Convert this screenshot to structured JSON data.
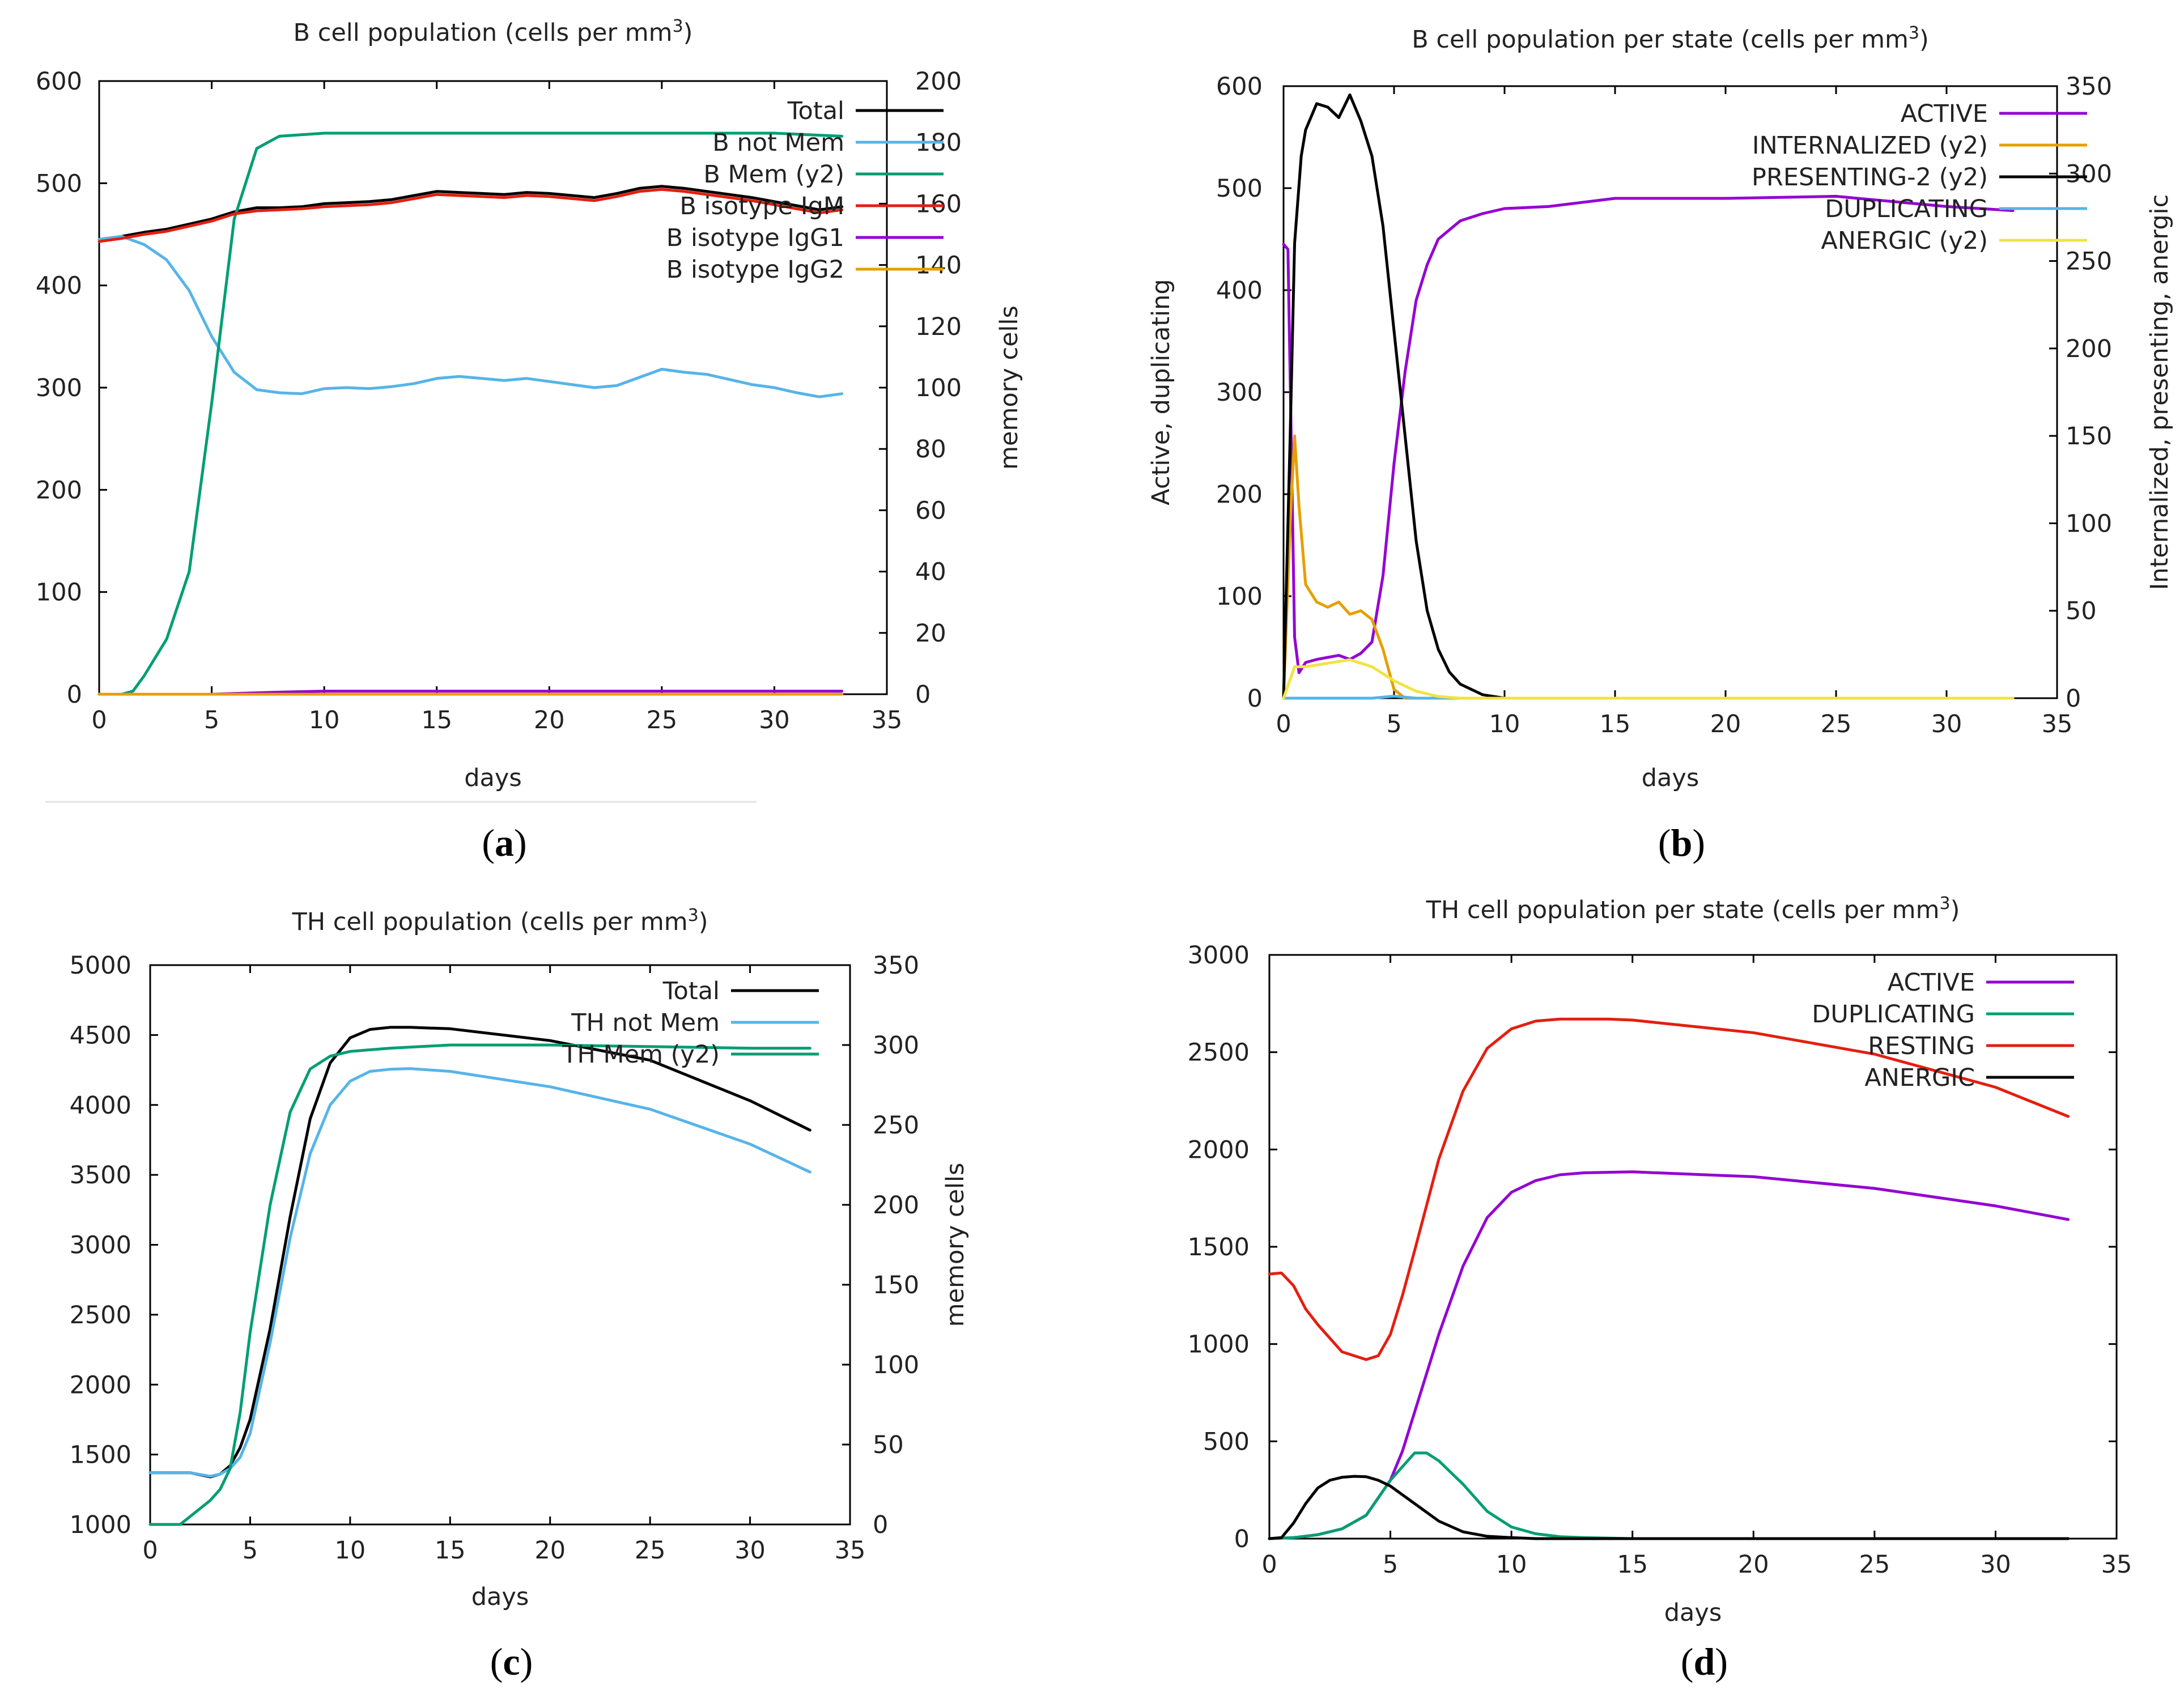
{
  "colors": {
    "black": "#000000",
    "sky": "#56b4e9",
    "green": "#009e73",
    "purple": "#9400d3",
    "orange": "#e69f00",
    "yellow": "#f0e442",
    "red": "#e51e10"
  },
  "chart_data": [
    {
      "id": "a",
      "panel_label": "a",
      "type": "line",
      "title": "B cell population (cells per mm",
      "title_sup": "3",
      "title_end": ")",
      "xlabel": "days",
      "ylabel": "",
      "y2label": "memory cells",
      "xlim": [
        0,
        35
      ],
      "ylim": [
        0,
        600
      ],
      "y2lim": [
        0,
        200
      ],
      "xticks": [
        0,
        5,
        10,
        15,
        20,
        25,
        30,
        35
      ],
      "yticks": [
        0,
        100,
        200,
        300,
        400,
        500,
        600
      ],
      "y2ticks": [
        0,
        20,
        40,
        60,
        80,
        100,
        120,
        140,
        160,
        180,
        200
      ],
      "series": [
        {
          "name": "Total",
          "color": "#000000",
          "axis": "y",
          "x": [
            0,
            1,
            2,
            3,
            4,
            5,
            6,
            7,
            8,
            9,
            10,
            11,
            12,
            13,
            14,
            15,
            16,
            17,
            18,
            19,
            20,
            21,
            22,
            23,
            24,
            25,
            26,
            27,
            28,
            29,
            30,
            31,
            32,
            33
          ],
          "y": [
            445,
            448,
            452,
            455,
            460,
            465,
            472,
            476,
            476,
            477,
            480,
            481,
            482,
            484,
            488,
            492,
            491,
            490,
            489,
            491,
            490,
            488,
            486,
            490,
            495,
            497,
            495,
            492,
            489,
            486,
            482,
            478,
            474,
            477
          ]
        },
        {
          "name": "B not Mem",
          "color": "#56b4e9",
          "axis": "y",
          "x": [
            0,
            1,
            2,
            3,
            4,
            5,
            6,
            7,
            8,
            9,
            10,
            11,
            12,
            13,
            14,
            15,
            16,
            17,
            18,
            19,
            20,
            21,
            22,
            23,
            24,
            25,
            26,
            27,
            28,
            29,
            30,
            31,
            32,
            33
          ],
          "y": [
            445,
            448,
            440,
            425,
            395,
            350,
            315,
            298,
            295,
            294,
            299,
            300,
            299,
            301,
            304,
            309,
            311,
            309,
            307,
            309,
            306,
            303,
            300,
            302,
            310,
            318,
            315,
            313,
            308,
            303,
            300,
            295,
            291,
            294
          ]
        },
        {
          "name": "B Mem (y2)",
          "color": "#009e73",
          "axis": "y2",
          "x": [
            0,
            1,
            1.5,
            2,
            3,
            4,
            5,
            6,
            7,
            8,
            10,
            15,
            20,
            25,
            30,
            33
          ],
          "y": [
            0,
            0,
            1,
            6,
            18,
            40,
            95,
            155,
            178,
            182,
            183,
            183,
            183,
            183,
            183,
            182
          ]
        },
        {
          "name": "B isotype IgM",
          "color": "#e51e10",
          "axis": "y",
          "x": [
            0,
            1,
            2,
            3,
            4,
            5,
            6,
            7,
            8,
            9,
            10,
            11,
            12,
            13,
            14,
            15,
            16,
            17,
            18,
            19,
            20,
            21,
            22,
            23,
            24,
            25,
            26,
            27,
            28,
            29,
            30,
            31,
            32,
            33
          ],
          "y": [
            443,
            446,
            450,
            453,
            458,
            463,
            470,
            473,
            474,
            475,
            477,
            478,
            479,
            481,
            485,
            489,
            488,
            487,
            486,
            488,
            487,
            485,
            483,
            487,
            492,
            494,
            492,
            489,
            486,
            483,
            479,
            475,
            471,
            474
          ]
        },
        {
          "name": "B isotype IgG1",
          "color": "#9400d3",
          "axis": "y",
          "x": [
            0,
            5,
            8,
            10,
            15,
            20,
            25,
            30,
            33
          ],
          "y": [
            0,
            0,
            2,
            3,
            3,
            3,
            3,
            3,
            3
          ]
        },
        {
          "name": "B isotype IgG2",
          "color": "#e69f00",
          "axis": "y",
          "x": [
            0,
            5,
            10,
            15,
            20,
            25,
            30,
            33
          ],
          "y": [
            0,
            0,
            0,
            0,
            0,
            0,
            0,
            0
          ]
        }
      ]
    },
    {
      "id": "b",
      "panel_label": "b",
      "type": "line",
      "title": "B cell population  per state (cells per mm",
      "title_sup": "3",
      "title_end": ")",
      "xlabel": "days",
      "ylabel": "Active, duplicating",
      "y2label": "Internalized, presenting, anergic",
      "xlim": [
        0,
        35
      ],
      "ylim": [
        0,
        600
      ],
      "y2lim": [
        0,
        350
      ],
      "xticks": [
        0,
        5,
        10,
        15,
        20,
        25,
        30,
        35
      ],
      "yticks": [
        0,
        100,
        200,
        300,
        400,
        500,
        600
      ],
      "y2ticks": [
        0,
        50,
        100,
        150,
        200,
        250,
        300,
        350
      ],
      "series": [
        {
          "name": "ACTIVE",
          "color": "#9400d3",
          "axis": "y",
          "x": [
            0,
            0.2,
            0.5,
            0.7,
            1,
            1.5,
            2,
            2.5,
            3,
            3.5,
            4,
            4.5,
            5,
            5.5,
            6,
            6.5,
            7,
            8,
            9,
            10,
            12,
            15,
            20,
            25,
            30,
            33
          ],
          "y": [
            445,
            440,
            60,
            25,
            35,
            38,
            40,
            42,
            38,
            44,
            55,
            120,
            230,
            320,
            390,
            425,
            450,
            468,
            475,
            480,
            482,
            490,
            490,
            492,
            482,
            478
          ]
        },
        {
          "name": "INTERNALIZED (y2)",
          "color": "#e69f00",
          "axis": "y2",
          "x": [
            0,
            0.3,
            0.5,
            0.7,
            1,
            1.5,
            2,
            2.5,
            3,
            3.5,
            4,
            4.5,
            5,
            5.5,
            6,
            8,
            10,
            20,
            33
          ],
          "y": [
            0,
            100,
            150,
            110,
            65,
            55,
            52,
            55,
            48,
            50,
            45,
            28,
            5,
            0,
            0,
            0,
            0,
            0,
            0
          ]
        },
        {
          "name": "PRESENTING-2 (y2)",
          "color": "#000000",
          "axis": "y2",
          "x": [
            0,
            0.3,
            0.5,
            0.8,
            1,
            1.5,
            2,
            2.5,
            3,
            3.5,
            4,
            4.5,
            5,
            5.5,
            6,
            6.5,
            7,
            7.5,
            8,
            9,
            10,
            12,
            20,
            33
          ],
          "y": [
            0,
            150,
            260,
            310,
            325,
            340,
            338,
            332,
            345,
            330,
            310,
            270,
            210,
            150,
            90,
            50,
            28,
            15,
            8,
            2,
            0,
            0,
            0,
            0
          ]
        },
        {
          "name": "DUPLICATING",
          "color": "#56b4e9",
          "axis": "y",
          "x": [
            0,
            2,
            4,
            5,
            6,
            10,
            20,
            33
          ],
          "y": [
            0,
            0,
            0,
            2,
            0,
            0,
            0,
            0
          ]
        },
        {
          "name": "ANERGIC (y2)",
          "color": "#f0e442",
          "axis": "y2",
          "x": [
            0,
            0.5,
            1,
            2,
            3,
            4,
            5,
            6,
            7,
            8,
            10,
            20,
            33
          ],
          "y": [
            0,
            18,
            18,
            20,
            22,
            18,
            10,
            4,
            1,
            0,
            0,
            0,
            0
          ]
        }
      ]
    },
    {
      "id": "c",
      "panel_label": "c",
      "type": "line",
      "title": "TH cell population (cells per mm",
      "title_sup": "3",
      "title_end": ")",
      "xlabel": "days",
      "ylabel": "",
      "y2label": "memory cells",
      "xlim": [
        0,
        35
      ],
      "ylim": [
        1000,
        5000
      ],
      "y2lim": [
        0,
        350
      ],
      "xticks": [
        0,
        5,
        10,
        15,
        20,
        25,
        30,
        35
      ],
      "yticks": [
        1000,
        1500,
        2000,
        2500,
        3000,
        3500,
        4000,
        4500,
        5000
      ],
      "y2ticks": [
        0,
        50,
        100,
        150,
        200,
        250,
        300,
        350
      ],
      "series": [
        {
          "name": "Total",
          "color": "#000000",
          "axis": "y",
          "x": [
            0,
            1,
            2,
            3,
            3.5,
            4,
            4.5,
            5,
            6,
            7,
            8,
            9,
            10,
            11,
            12,
            13,
            15,
            20,
            25,
            30,
            33
          ],
          "y": [
            1370,
            1370,
            1370,
            1340,
            1360,
            1420,
            1550,
            1750,
            2400,
            3200,
            3900,
            4300,
            4480,
            4540,
            4555,
            4555,
            4545,
            4460,
            4320,
            4030,
            3820
          ]
        },
        {
          "name": "TH not Mem",
          "color": "#56b4e9",
          "axis": "y",
          "x": [
            0,
            1,
            2,
            3,
            3.5,
            4,
            4.5,
            5,
            6,
            7,
            8,
            9,
            10,
            11,
            12,
            13,
            15,
            20,
            25,
            30,
            33
          ],
          "y": [
            1370,
            1370,
            1370,
            1345,
            1360,
            1400,
            1480,
            1650,
            2300,
            3050,
            3650,
            4000,
            4170,
            4240,
            4255,
            4260,
            4240,
            4130,
            3970,
            3720,
            3520
          ]
        },
        {
          "name": "TH Mem (y2)",
          "color": "#009e73",
          "axis": "y2",
          "x": [
            0,
            1,
            1.5,
            2,
            3,
            3.5,
            4,
            4.5,
            5,
            6,
            7,
            8,
            9,
            10,
            12,
            15,
            20,
            25,
            30,
            33
          ],
          "y": [
            0,
            0,
            0,
            5,
            15,
            22,
            35,
            70,
            120,
            200,
            258,
            285,
            293,
            296,
            298,
            300,
            300,
            299,
            298,
            298
          ]
        }
      ]
    },
    {
      "id": "d",
      "panel_label": "d",
      "type": "line",
      "title": "TH cell population per state (cells per mm",
      "title_sup": "3",
      "title_end": ")",
      "xlabel": "days",
      "ylabel": "",
      "y2label": "",
      "xlim": [
        0,
        35
      ],
      "ylim": [
        0,
        3000
      ],
      "xticks": [
        0,
        5,
        10,
        15,
        20,
        25,
        30,
        35
      ],
      "yticks": [
        0,
        500,
        1000,
        1500,
        2000,
        2500,
        3000
      ],
      "series": [
        {
          "name": "ACTIVE",
          "color": "#9400d3",
          "axis": "y",
          "x": [
            0,
            1,
            2,
            3,
            4,
            5,
            5.5,
            6,
            7,
            8,
            9,
            10,
            11,
            12,
            13,
            15,
            20,
            25,
            30,
            33
          ],
          "y": [
            0,
            5,
            20,
            50,
            120,
            300,
            450,
            650,
            1050,
            1400,
            1650,
            1780,
            1840,
            1870,
            1880,
            1885,
            1860,
            1800,
            1710,
            1640
          ]
        },
        {
          "name": "DUPLICATING",
          "color": "#009e73",
          "axis": "y",
          "x": [
            0,
            1,
            2,
            3,
            4,
            5,
            6,
            6.5,
            7,
            8,
            9,
            10,
            11,
            12,
            13,
            15,
            20,
            33
          ],
          "y": [
            0,
            5,
            20,
            50,
            120,
            300,
            440,
            440,
            400,
            280,
            140,
            60,
            25,
            10,
            5,
            0,
            0,
            0
          ]
        },
        {
          "name": "RESTING",
          "color": "#e51e10",
          "axis": "y",
          "x": [
            0,
            0.5,
            1,
            1.5,
            2,
            3,
            3.5,
            4,
            4.5,
            5,
            5.5,
            6,
            7,
            8,
            9,
            10,
            11,
            12,
            14,
            15,
            20,
            25,
            30,
            33
          ],
          "y": [
            1360,
            1365,
            1300,
            1180,
            1100,
            960,
            940,
            920,
            940,
            1050,
            1250,
            1480,
            1950,
            2300,
            2520,
            2620,
            2660,
            2670,
            2670,
            2665,
            2600,
            2490,
            2320,
            2170
          ]
        },
        {
          "name": "ANERGIC",
          "color": "#000000",
          "axis": "y",
          "x": [
            0,
            0.5,
            1,
            1.5,
            2,
            2.5,
            3,
            3.5,
            4,
            4.5,
            5,
            6,
            7,
            8,
            9,
            10,
            11,
            12,
            15,
            20,
            33
          ],
          "y": [
            0,
            5,
            80,
            180,
            260,
            300,
            315,
            320,
            318,
            300,
            270,
            180,
            90,
            35,
            12,
            5,
            0,
            0,
            0,
            0,
            0
          ]
        }
      ]
    }
  ]
}
